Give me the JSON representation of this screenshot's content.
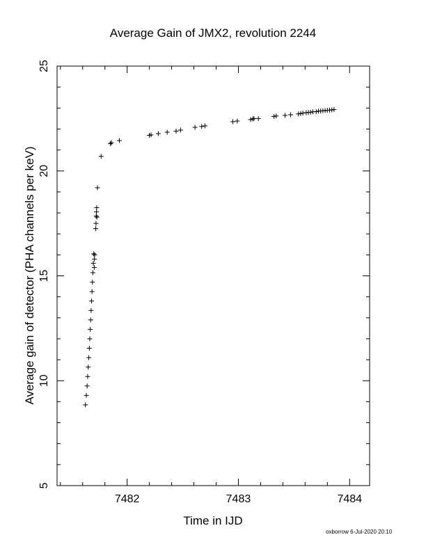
{
  "chart_data": {
    "type": "scatter",
    "title": "Average Gain of JMX2, revolution 2244",
    "xlabel": "Time in IJD",
    "ylabel": "Average gain of detector (PHA channels per keV)",
    "xlim": [
      7481.37,
      7484.18
    ],
    "ylim": [
      5,
      25
    ],
    "x_ticks": [
      7482,
      7483,
      7484
    ],
    "x_tick_labels": [
      "7482",
      "7483",
      "7484"
    ],
    "y_ticks": [
      5,
      10,
      15,
      20,
      25
    ],
    "y_tick_labels": [
      "5",
      "10",
      "15",
      "20",
      "25"
    ],
    "grid": false,
    "marker": "+",
    "series": [
      {
        "x": [
          7481.625,
          7481.633,
          7481.64,
          7481.645,
          7481.65,
          7481.655,
          7481.66,
          7481.664,
          7481.668,
          7481.672,
          7481.676,
          7481.68,
          7481.684,
          7481.688,
          7481.692,
          7481.696,
          7481.7,
          7481.704,
          7481.706,
          7481.708,
          7481.718,
          7481.72,
          7481.722,
          7481.724,
          7481.726,
          7481.728,
          7481.733,
          7481.766,
          7481.85,
          7481.858,
          7481.93,
          7482.2,
          7482.215,
          7482.28,
          7482.36,
          7482.44,
          7482.48,
          7482.61,
          7482.67,
          7482.7,
          7482.95,
          7482.99,
          7483.11,
          7483.13,
          7483.14,
          7483.18,
          7483.32,
          7483.34,
          7483.42,
          7483.47,
          7483.54,
          7483.56,
          7483.58,
          7483.61,
          7483.63,
          7483.65,
          7483.67,
          7483.7,
          7483.72,
          7483.74,
          7483.76,
          7483.78,
          7483.8,
          7483.82,
          7483.84,
          7483.86
        ],
        "y": [
          8.85,
          9.3,
          9.75,
          10.2,
          10.65,
          11.1,
          11.55,
          12.0,
          12.45,
          12.9,
          13.35,
          13.8,
          14.25,
          14.7,
          15.15,
          15.6,
          16.05,
          15.4,
          15.8,
          16.0,
          17.25,
          17.5,
          17.85,
          18.05,
          18.25,
          17.8,
          19.2,
          20.7,
          21.3,
          21.35,
          21.45,
          21.7,
          21.72,
          21.78,
          21.85,
          21.9,
          21.95,
          22.08,
          22.12,
          22.15,
          22.35,
          22.38,
          22.45,
          22.48,
          22.5,
          22.5,
          22.6,
          22.62,
          22.65,
          22.68,
          22.72,
          22.74,
          22.76,
          22.78,
          22.79,
          22.8,
          22.82,
          22.83,
          22.85,
          22.86,
          22.87,
          22.88,
          22.89,
          22.9,
          22.91,
          22.93
        ]
      }
    ]
  },
  "footer": "oxborrow  6-Jul-2020 20:10"
}
